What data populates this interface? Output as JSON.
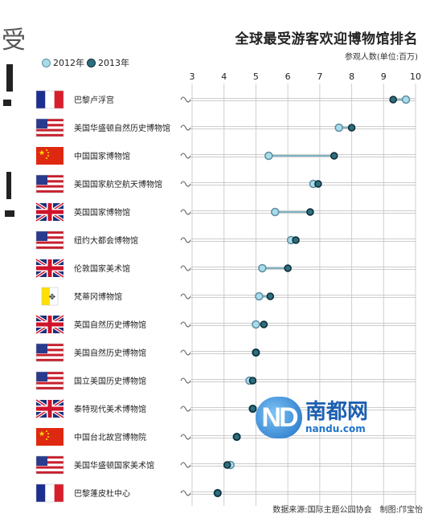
{
  "chart_data": {
    "type": "scatter",
    "title": "全球最受游客欢迎博物馆排名",
    "subtitle": "参观人数(单位:百万)",
    "source": "数据来源:国际主题公园协会　制图:邝宝怡",
    "legend": [
      {
        "label": "2012年",
        "color": "#a9dbe8"
      },
      {
        "label": "2013年",
        "color": "#2c6f80"
      }
    ],
    "x_ticks": [
      3,
      4,
      5,
      6,
      7,
      8,
      9,
      10
    ],
    "xlim": [
      3,
      10
    ],
    "categories": [
      {
        "name": "巴黎卢浮宫",
        "flag": "france"
      },
      {
        "name": "美国华盛顿自然历史博物馆",
        "flag": "usa"
      },
      {
        "name": "中国国家博物馆",
        "flag": "china"
      },
      {
        "name": "美国国家航空航天博物馆",
        "flag": "usa"
      },
      {
        "name": "英国国家博物馆",
        "flag": "uk"
      },
      {
        "name": "纽约大都会博物馆",
        "flag": "usa"
      },
      {
        "name": "伦敦国家美术馆",
        "flag": "uk"
      },
      {
        "name": "梵蒂冈博物馆",
        "flag": "vatican"
      },
      {
        "name": "英国自然历史博物馆",
        "flag": "uk"
      },
      {
        "name": "美国自然历史博物馆",
        "flag": "usa"
      },
      {
        "name": "国立美国历史博物馆",
        "flag": "usa"
      },
      {
        "name": "泰特现代美术博物馆",
        "flag": "uk"
      },
      {
        "name": "中国台北故宫博物院",
        "flag": "china"
      },
      {
        "name": "美国华盛顿国家美术馆",
        "flag": "usa"
      },
      {
        "name": "巴黎蓬皮杜中心",
        "flag": "france"
      }
    ],
    "series": [
      {
        "name": "2012年",
        "values": [
          9.7,
          7.6,
          5.4,
          6.8,
          5.6,
          6.1,
          5.2,
          5.1,
          5.0,
          5.0,
          4.8,
          4.9,
          4.4,
          4.2,
          3.8
        ]
      },
      {
        "name": "2013年",
        "values": [
          9.3,
          8.0,
          7.45,
          6.95,
          6.7,
          6.25,
          6.0,
          5.45,
          5.25,
          5.0,
          4.9,
          4.9,
          4.4,
          4.1,
          3.8
        ]
      }
    ]
  },
  "watermark": {
    "logo_text": "ND",
    "name": "南都网",
    "url": "nandu.com"
  }
}
